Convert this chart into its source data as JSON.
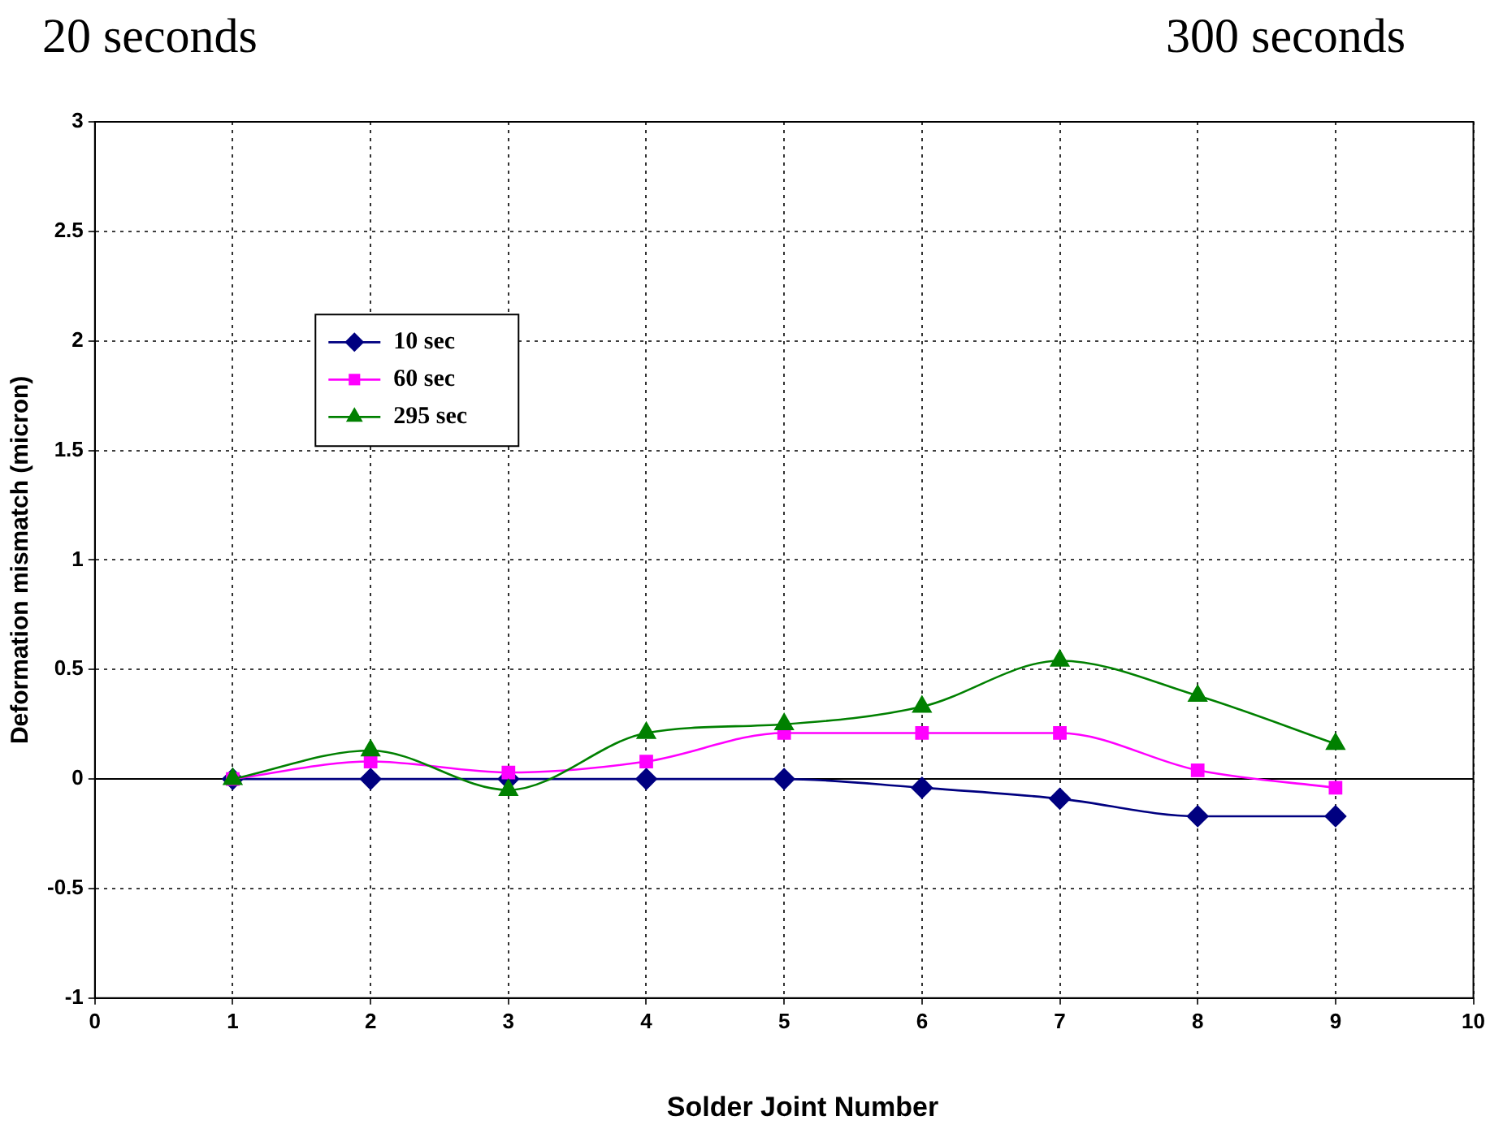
{
  "chart_data": {
    "type": "line",
    "xlabel": "Solder Joint Number",
    "ylabel": "Deformation mismatch (micron)",
    "annotations": [
      "20 seconds",
      "300 seconds"
    ],
    "x": [
      1,
      2,
      3,
      4,
      5,
      6,
      7,
      8,
      9
    ],
    "series": [
      {
        "name": "10 sec",
        "color": "#000080",
        "marker": "diamond",
        "values": [
          0,
          0,
          0,
          0,
          0,
          -0.04,
          -0.09,
          -0.17,
          -0.17
        ]
      },
      {
        "name": "60 sec",
        "color": "#ff00ff",
        "marker": "square",
        "values": [
          0,
          0.08,
          0.03,
          0.08,
          0.21,
          0.21,
          0.21,
          0.04,
          -0.04
        ]
      },
      {
        "name": "295 sec",
        "color": "#008000",
        "marker": "triangle",
        "values": [
          0,
          0.13,
          -0.05,
          0.21,
          0.25,
          0.33,
          0.54,
          0.38,
          0.16
        ]
      }
    ],
    "xlim": [
      0,
      10
    ],
    "xticks": [
      0,
      1,
      2,
      3,
      4,
      5,
      6,
      7,
      8,
      9,
      10
    ],
    "ylim": [
      -1,
      3
    ],
    "yticks": [
      -1,
      -0.5,
      0,
      0.5,
      1,
      1.5,
      2,
      2.5,
      3
    ],
    "ref_lines": [
      {
        "axis": "y",
        "value": 0,
        "color": "#000000",
        "line_style": "solid"
      }
    ],
    "grid": true,
    "legend": "left",
    "line_style": "solid"
  }
}
